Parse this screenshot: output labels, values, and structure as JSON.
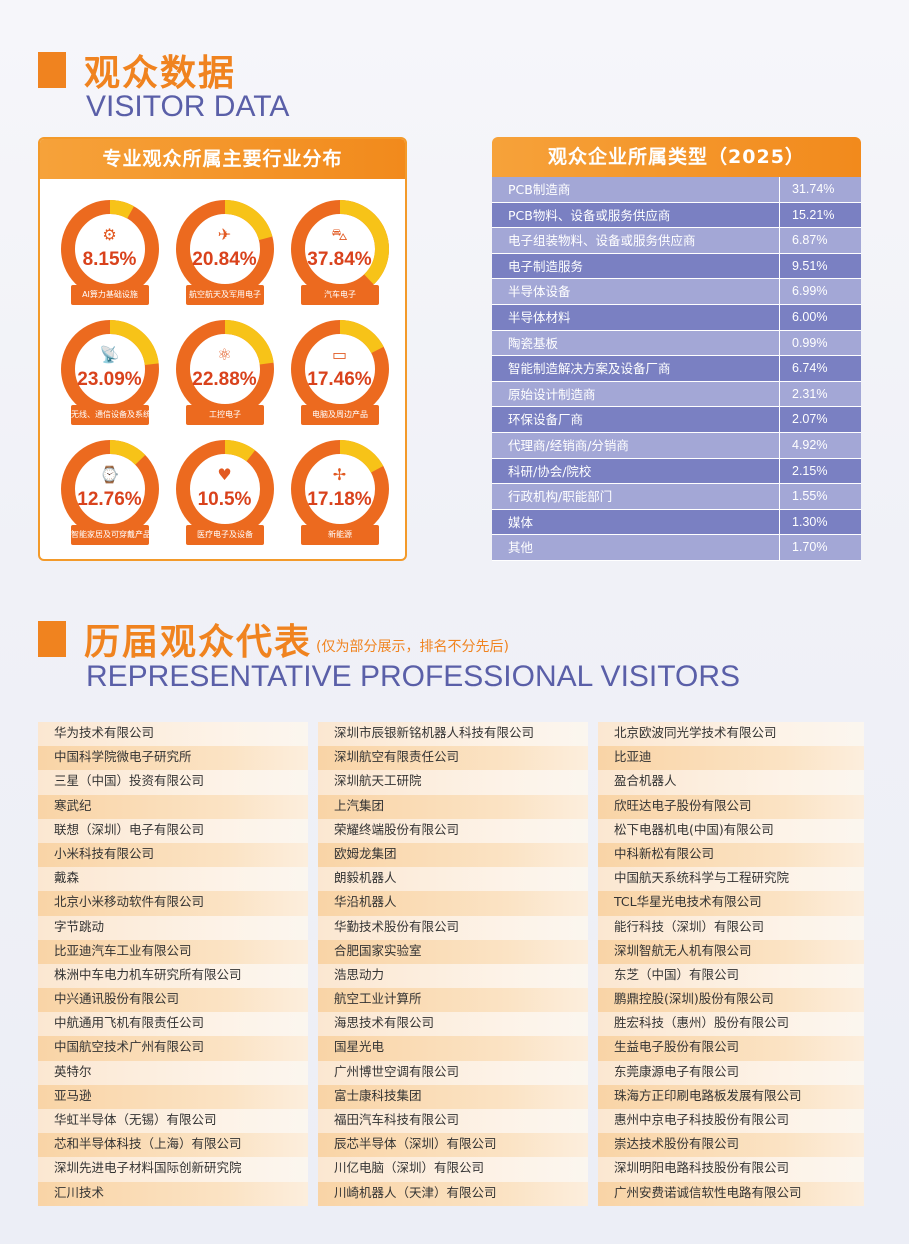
{
  "visitor_data": {
    "title_cn": "观众数据",
    "title_en": "VISITOR DATA"
  },
  "industry": {
    "title": "专业观众所属主要行业分布",
    "items": [
      {
        "pct": "8.15%",
        "value": 8.15,
        "label": "AI算力基础设施",
        "icon": "chip-head-icon",
        "glyph": "⚙"
      },
      {
        "pct": "20.84%",
        "value": 20.84,
        "label": "航空航天及军用电子",
        "icon": "airplane-icon",
        "glyph": "✈"
      },
      {
        "pct": "37.84%",
        "value": 37.84,
        "label": "汽车电子",
        "icon": "car-icon",
        "glyph": "⛍"
      },
      {
        "pct": "23.09%",
        "value": 23.09,
        "label": "无线、通信设备及系统",
        "icon": "satellite-dish-icon",
        "glyph": "📡"
      },
      {
        "pct": "22.88%",
        "value": 22.88,
        "label": "工控电子",
        "icon": "atom-icon",
        "glyph": "⚛"
      },
      {
        "pct": "17.46%",
        "value": 17.46,
        "label": "电脑及周边产品",
        "icon": "monitor-icon",
        "glyph": "▭"
      },
      {
        "pct": "12.76%",
        "value": 12.76,
        "label": "智能家居及可穿戴产品",
        "icon": "watch-icon",
        "glyph": "⌚"
      },
      {
        "pct": "10.5%",
        "value": 10.5,
        "label": "医疗电子及设备",
        "icon": "heartbeat-monitor-icon",
        "glyph": "♥"
      },
      {
        "pct": "17.18%",
        "value": 17.18,
        "label": "新能源",
        "icon": "wind-turbine-icon",
        "glyph": "✢"
      }
    ]
  },
  "company_types": {
    "title": "观众企业所属类型（2025）",
    "rows": [
      {
        "name": "PCB制造商",
        "pct": "31.74%"
      },
      {
        "name": "PCB物料、设备或服务供应商",
        "pct": "15.21%"
      },
      {
        "name": "电子组装物料、设备或服务供应商",
        "pct": "6.87%"
      },
      {
        "name": "电子制造服务",
        "pct": "9.51%"
      },
      {
        "name": "半导体设备",
        "pct": "6.99%"
      },
      {
        "name": "半导体材料",
        "pct": "6.00%"
      },
      {
        "name": "陶瓷基板",
        "pct": "0.99%"
      },
      {
        "name": "智能制造解决方案及设备厂商",
        "pct": "6.74%"
      },
      {
        "name": "原始设计制造商",
        "pct": "2.31%"
      },
      {
        "name": "环保设备厂商",
        "pct": "2.07%"
      },
      {
        "name": "代理商/经销商/分销商",
        "pct": "4.92%"
      },
      {
        "name": "科研/协会/院校",
        "pct": "2.15%"
      },
      {
        "name": "行政机构/职能部门",
        "pct": "1.55%"
      },
      {
        "name": "媒体",
        "pct": "1.30%"
      },
      {
        "name": "其他",
        "pct": "1.70%"
      }
    ]
  },
  "representatives": {
    "title_cn": "历届观众代表",
    "note": "(仅为部分展示，排名不分先后)",
    "title_en": "REPRESENTATIVE PROFESSIONAL VISITORS",
    "columns": [
      [
        "华为技术有限公司",
        "中国科学院微电子研究所",
        "三星（中国）投资有限公司",
        "寒武纪",
        "联想（深圳）电子有限公司",
        "小米科技有限公司",
        "戴森",
        "北京小米移动软件有限公司",
        "字节跳动",
        "比亚迪汽车工业有限公司",
        "株洲中车电力机车研究所有限公司",
        "中兴通讯股份有限公司",
        "中航通用飞机有限责任公司",
        "中国航空技术广州有限公司",
        "英特尔",
        "亚马逊",
        "华虹半导体（无锡）有限公司",
        "芯和半导体科技（上海）有限公司",
        "深圳先进电子材料国际创新研究院",
        "汇川技术"
      ],
      [
        "深圳市辰银新铭机器人科技有限公司",
        "深圳航空有限责任公司",
        "深圳航天工研院",
        "上汽集团",
        "荣耀终端股份有限公司",
        "欧姆龙集团",
        "朗毅机器人",
        "华沿机器人",
        "华勤技术股份有限公司",
        "合肥国家实验室",
        "浩思动力",
        "航空工业计算所",
        "海思技术有限公司",
        "国星光电",
        "广州博世空调有限公司",
        "富士康科技集团",
        "福田汽车科技有限公司",
        "辰芯半导体（深圳）有限公司",
        "川亿电脑（深圳）有限公司",
        "川崎机器人（天津）有限公司"
      ],
      [
        "北京欧波同光学技术有限公司",
        "比亚迪",
        "盈合机器人",
        "欣旺达电子股份有限公司",
        "松下电器机电(中国)有限公司",
        "中科新松有限公司",
        "中国航天系统科学与工程研究院",
        "TCL华星光电技术有限公司",
        "能行科技（深圳）有限公司",
        "深圳智航无人机有限公司",
        "东芝（中国）有限公司",
        "鹏鼎控股(深圳)股份有限公司",
        "胜宏科技（惠州）股份有限公司",
        "生益电子股份有限公司",
        "东莞康源电子有限公司",
        "珠海方正印刷电路板发展有限公司",
        "惠州中京电子科技股份有限公司",
        "崇达技术股份有限公司",
        "深圳明阳电路科技股份有限公司",
        "广州安费诺诚信软性电路有限公司"
      ]
    ]
  }
}
